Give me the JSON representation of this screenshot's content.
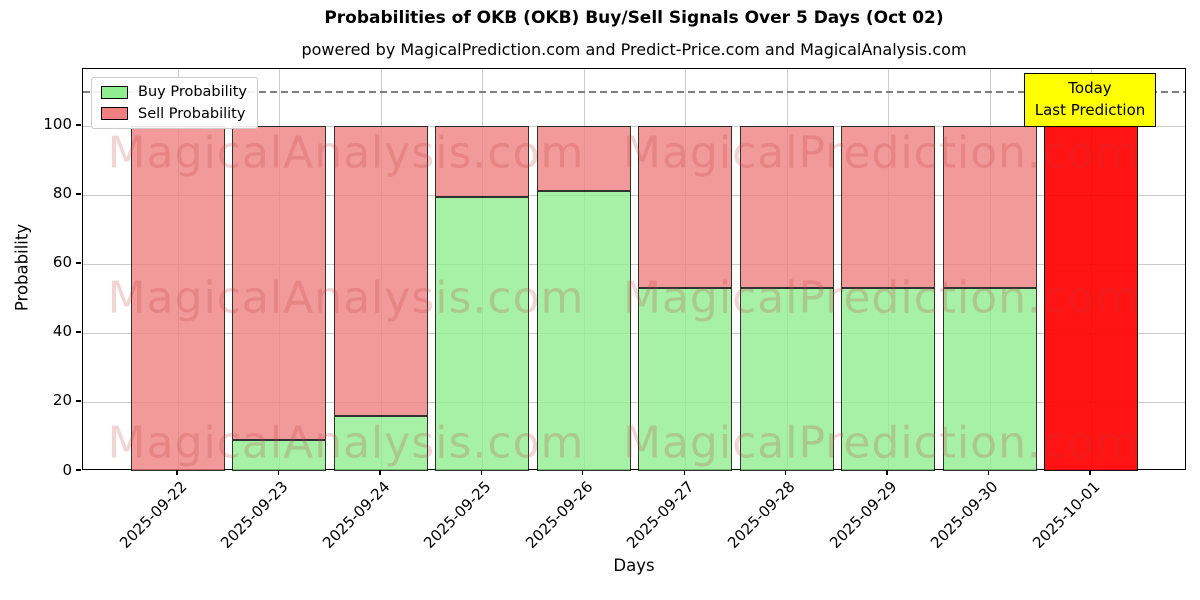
{
  "title": "Probabilities of OKB (OKB) Buy/Sell Signals Over 5 Days (Oct 02)",
  "subtitle": "powered by MagicalPrediction.com and Predict-Price.com and MagicalAnalysis.com",
  "legend": {
    "buy_label": "Buy Probability",
    "sell_label": "Sell Probability"
  },
  "annotation": {
    "line1": "Today",
    "line2": "Last Prediction"
  },
  "watermarks": {
    "left_text": "MagicalAnalysis.com",
    "right_text": "MagicalPrediction.com"
  },
  "colors": {
    "buy": "#90ee90",
    "sell": "#f08080",
    "today": "#ff0000",
    "annotation_bg": "#ffff00",
    "grid": "#cccccc",
    "dashed_line": "#7f7f7f",
    "watermark": "rgba(190,60,60,0.22)"
  },
  "chart_data": {
    "type": "bar",
    "stacked": true,
    "title": "Probabilities of OKB (OKB) Buy/Sell Signals Over 5 Days (Oct 02)",
    "xlabel": "Days",
    "ylabel": "Probability",
    "categories": [
      "2025-09-22",
      "2025-09-23",
      "2025-09-24",
      "2025-09-25",
      "2025-09-26",
      "2025-09-27",
      "2025-09-28",
      "2025-09-29",
      "2025-09-30",
      "2025-10-01"
    ],
    "series": [
      {
        "name": "Buy Probability",
        "color": "#90ee90",
        "values": [
          0,
          9,
          16,
          79.5,
          81,
          53,
          53,
          53,
          53,
          0
        ]
      },
      {
        "name": "Sell Probability",
        "color": "#f08080",
        "values": [
          100,
          91,
          84,
          20.5,
          19,
          47,
          47,
          47,
          47,
          0
        ]
      }
    ],
    "today_bar": {
      "category": "2025-10-01",
      "value": 110,
      "color": "#ff0000",
      "label": "Today Last Prediction"
    },
    "dashed_line_y": 110,
    "ylim": [
      0,
      116.5
    ],
    "yticks": [
      0,
      20,
      40,
      60,
      80,
      100
    ],
    "grid": true,
    "legend_position": "upper left"
  }
}
